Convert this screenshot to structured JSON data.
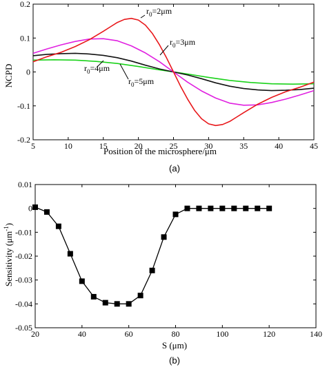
{
  "chart_data": [
    {
      "type": "line",
      "panel_caption": "(a)",
      "xlabel": "Position of the microsphere/μm",
      "ylabel": "NCPD",
      "xlim": [
        5,
        45
      ],
      "ylim": [
        -0.2,
        0.2
      ],
      "xticks": [
        "5",
        "10",
        "15",
        "20",
        "25",
        "30",
        "35",
        "40",
        "45"
      ],
      "yticks": [
        "0.2",
        "0.1",
        "0",
        "-0.1",
        "-0.2"
      ],
      "grid": false,
      "series": [
        {
          "name": "r0=2μm",
          "label_text": "r",
          "label_sub": "0",
          "label_rest": "=2μm",
          "color": "#e8171a",
          "x": [
            5,
            7,
            9,
            11,
            13,
            15,
            16,
            17,
            18,
            19,
            20,
            21,
            22,
            23,
            24,
            25,
            26,
            27,
            28,
            29,
            30,
            31,
            32,
            33,
            34,
            35,
            37,
            39,
            41,
            43,
            45
          ],
          "y": [
            0.03,
            0.045,
            0.058,
            0.075,
            0.095,
            0.12,
            0.133,
            0.146,
            0.155,
            0.158,
            0.153,
            0.138,
            0.113,
            0.08,
            0.042,
            0.0,
            -0.042,
            -0.08,
            -0.113,
            -0.138,
            -0.153,
            -0.158,
            -0.155,
            -0.146,
            -0.133,
            -0.12,
            -0.095,
            -0.075,
            -0.058,
            -0.045,
            -0.03
          ]
        },
        {
          "name": "r0=3μm",
          "label_text": "r",
          "label_sub": "0",
          "label_rest": "=3μm",
          "color": "#e020e0",
          "x": [
            5,
            7,
            9,
            11,
            13,
            15,
            17,
            19,
            21,
            23,
            25,
            27,
            29,
            31,
            33,
            35,
            37,
            39,
            41,
            43,
            45
          ],
          "y": [
            0.055,
            0.068,
            0.08,
            0.09,
            0.097,
            0.098,
            0.092,
            0.077,
            0.056,
            0.03,
            0.0,
            -0.03,
            -0.056,
            -0.077,
            -0.092,
            -0.098,
            -0.097,
            -0.09,
            -0.08,
            -0.068,
            -0.055
          ]
        },
        {
          "name": "r0=4μm",
          "label_text": "r",
          "label_sub": "0",
          "label_rest": "=4μm",
          "color": "#111111",
          "x": [
            5,
            7,
            9,
            11,
            13,
            15,
            17,
            19,
            21,
            23,
            25,
            27,
            29,
            31,
            33,
            35,
            37,
            39,
            41,
            43,
            45
          ],
          "y": [
            0.048,
            0.052,
            0.054,
            0.055,
            0.053,
            0.049,
            0.042,
            0.032,
            0.02,
            0.009,
            0.0,
            -0.009,
            -0.02,
            -0.032,
            -0.042,
            -0.049,
            -0.053,
            -0.055,
            -0.054,
            -0.052,
            -0.048
          ]
        },
        {
          "name": "r0=5μm",
          "label_text": "r",
          "label_sub": "0",
          "label_rest": "=5μm",
          "color": "#19d219",
          "x": [
            5,
            8,
            11,
            14,
            17,
            20,
            23,
            25,
            27,
            30,
            33,
            36,
            39,
            42,
            45
          ],
          "y": [
            0.035,
            0.036,
            0.035,
            0.031,
            0.025,
            0.016,
            0.006,
            0.0,
            -0.006,
            -0.016,
            -0.025,
            -0.031,
            -0.035,
            -0.036,
            -0.035
          ]
        }
      ]
    },
    {
      "type": "line",
      "panel_caption": "(b)",
      "xlabel": "S (μm)",
      "ylabel_text": "Sensitivity (μm",
      "ylabel_sup": "-1",
      "ylabel_end": ")",
      "xlim": [
        20,
        140
      ],
      "ylim": [
        -0.05,
        0.01
      ],
      "xticks": [
        "20",
        "40",
        "60",
        "80",
        "100",
        "120",
        "140"
      ],
      "yticks": [
        "0.01",
        "0",
        "-0.01",
        "-0.02",
        "-0.03",
        "-0.04",
        "-0.05"
      ],
      "grid": false,
      "marker": "square",
      "color": "#000000",
      "x": [
        20,
        25,
        30,
        35,
        40,
        45,
        50,
        55,
        60,
        65,
        70,
        75,
        80,
        85,
        90,
        95,
        100,
        105,
        110,
        115,
        120
      ],
      "y": [
        0.0005,
        -0.0015,
        -0.0075,
        -0.019,
        -0.0305,
        -0.037,
        -0.0395,
        -0.04,
        -0.04,
        -0.0365,
        -0.026,
        -0.012,
        -0.0025,
        0.0,
        0.0,
        0.0,
        0.0,
        0.0,
        0.0,
        0.0,
        0.0
      ]
    }
  ]
}
